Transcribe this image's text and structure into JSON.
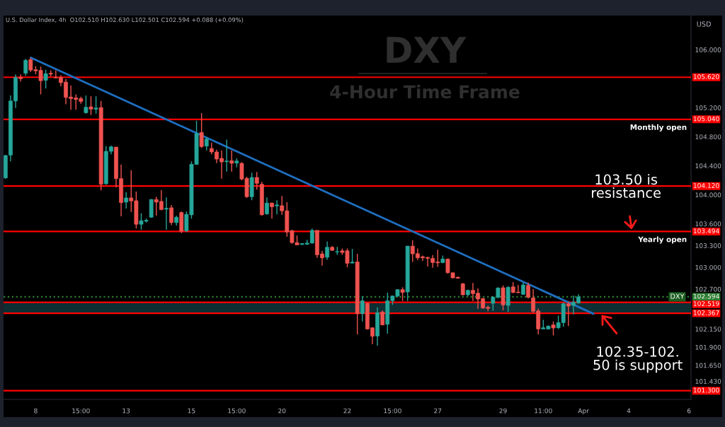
{
  "chart_data": {
    "type": "candlestick",
    "title": "DXY",
    "subtitle": "4-Hour Time Frame",
    "ylabel": "USD",
    "categories": [
      null,
      null,
      null,
      null,
      null,
      null,
      "8",
      null,
      null,
      null,
      null,
      null,
      null,
      null,
      null,
      "15:00",
      null,
      null,
      null,
      null,
      null,
      null,
      null,
      null,
      "13",
      null,
      null,
      null,
      null,
      null,
      null,
      null,
      null,
      null,
      null,
      null,
      null,
      "15",
      null,
      null,
      null,
      null,
      null,
      null,
      null,
      null,
      "15:00",
      null,
      null,
      null,
      null,
      null,
      null,
      null,
      null,
      "20",
      null,
      null,
      null,
      null,
      null,
      null,
      null,
      null,
      null,
      null,
      null,
      null,
      "22",
      null,
      null,
      null,
      null,
      null,
      null,
      null,
      null,
      "15:00",
      null,
      null,
      null,
      null,
      null,
      null,
      null,
      null,
      "27",
      null,
      null,
      null,
      null,
      null,
      null,
      null,
      null,
      null,
      null,
      null,
      null,
      "29",
      null,
      null,
      null,
      null,
      null,
      null,
      null,
      "11:00",
      null,
      null,
      null,
      null,
      null,
      null,
      null,
      "Apr",
      null,
      null,
      null,
      null,
      null,
      null,
      null,
      null,
      "4",
      null,
      null,
      null,
      null,
      null,
      null,
      null,
      null,
      null,
      null,
      null,
      "6"
    ],
    "ohlc": [
      [
        104.233,
        104.55,
        104.22,
        104.541
      ],
      [
        104.547,
        105.368,
        104.46,
        105.293
      ],
      [
        105.293,
        105.66,
        105.196,
        105.617
      ],
      [
        105.62,
        105.66,
        105.56,
        105.6
      ],
      [
        105.676,
        105.87,
        105.643,
        105.854
      ],
      [
        105.864,
        105.887,
        105.692,
        105.718
      ],
      [
        105.724,
        105.773,
        105.66,
        105.708
      ],
      [
        105.715,
        105.767,
        105.384,
        105.572
      ],
      [
        105.578,
        105.724,
        105.465,
        105.669
      ],
      [
        105.676,
        105.715,
        105.627,
        105.663
      ],
      [
        105.621,
        105.715,
        105.604,
        105.611
      ],
      [
        105.617,
        105.65,
        105.497,
        105.546
      ],
      [
        105.553,
        105.595,
        105.248,
        105.342
      ],
      [
        105.348,
        105.507,
        105.173,
        105.326
      ],
      [
        105.335,
        105.384,
        105.173,
        105.313
      ],
      [
        105.326,
        105.352,
        105.254,
        105.287
      ],
      [
        105.131,
        105.368,
        105.118,
        105.206
      ],
      [
        105.212,
        105.358,
        105.099,
        105.18
      ],
      [
        105.18,
        105.358,
        105.118,
        105.196
      ],
      [
        105.202,
        105.293,
        104.061,
        104.145
      ],
      [
        104.152,
        104.671,
        104.136,
        104.599
      ],
      [
        104.599,
        104.677,
        104.557,
        104.661
      ],
      [
        104.658,
        104.658,
        104.103,
        104.223
      ],
      [
        104.223,
        104.418,
        103.704,
        103.892
      ],
      [
        103.899,
        104.038,
        103.811,
        103.957
      ],
      [
        103.957,
        104.34,
        103.763,
        103.915
      ],
      [
        103.918,
        104.045,
        103.536,
        103.594
      ],
      [
        103.594,
        103.746,
        103.519,
        103.643
      ],
      [
        103.636,
        103.672,
        103.617,
        103.649
      ],
      [
        103.691,
        103.941,
        103.682,
        103.935
      ],
      [
        103.935,
        103.973,
        103.714,
        103.899
      ],
      [
        103.909,
        104.064,
        103.789,
        103.795
      ],
      [
        103.802,
        103.964,
        103.519,
        103.815
      ],
      [
        103.821,
        103.86,
        103.584,
        103.617
      ],
      [
        103.617,
        103.714,
        103.575,
        103.691
      ],
      [
        103.756,
        103.769,
        103.471,
        103.497
      ],
      [
        103.503,
        103.769,
        103.487,
        103.73
      ],
      [
        103.724,
        104.46,
        103.672,
        104.421
      ],
      [
        104.418,
        105.021,
        104.418,
        104.842
      ],
      [
        104.859,
        105.125,
        104.645,
        104.664
      ],
      [
        104.671,
        104.794,
        104.612,
        104.768
      ],
      [
        104.638,
        104.719,
        104.557,
        104.59
      ],
      [
        104.59,
        104.622,
        104.437,
        104.492
      ],
      [
        104.502,
        104.612,
        104.223,
        104.453
      ],
      [
        104.456,
        104.761,
        104.32,
        104.466
      ],
      [
        104.47,
        104.612,
        104.32,
        104.434
      ],
      [
        104.437,
        104.502,
        104.379,
        104.466
      ],
      [
        104.434,
        104.45,
        104.2,
        104.217
      ],
      [
        104.226,
        104.249,
        103.957,
        103.973
      ],
      [
        103.973,
        104.304,
        103.925,
        104.239
      ],
      [
        104.239,
        104.314,
        104.071,
        104.158
      ],
      [
        104.145,
        104.178,
        103.714,
        103.724
      ],
      [
        103.737,
        103.964,
        103.724,
        103.886
      ],
      [
        103.886,
        103.892,
        103.672,
        103.834
      ],
      [
        103.847,
        103.925,
        103.73,
        103.86
      ],
      [
        103.85,
        103.983,
        103.724,
        103.779
      ],
      [
        103.779,
        103.899,
        103.422,
        103.487
      ],
      [
        103.504,
        103.519,
        103.325,
        103.341
      ],
      [
        103.341,
        103.439,
        103.309,
        103.309
      ],
      [
        103.315,
        103.335,
        103.309,
        103.328
      ],
      [
        103.319,
        103.38,
        103.309,
        103.335
      ],
      [
        103.335,
        103.536,
        103.325,
        103.51
      ],
      [
        103.51,
        103.51,
        103.131,
        103.173
      ],
      [
        103.186,
        103.228,
        103.024,
        103.131
      ],
      [
        103.14,
        103.358,
        103.105,
        103.277
      ],
      [
        103.277,
        103.293,
        103.228,
        103.234
      ],
      [
        103.212,
        103.283,
        103.173,
        103.218
      ],
      [
        103.228,
        103.26,
        103.173,
        103.205
      ],
      [
        103.228,
        103.26,
        103.001,
        103.056
      ],
      [
        103.059,
        103.254,
        103.056,
        103.072
      ],
      [
        103.075,
        103.186,
        102.077,
        102.362
      ],
      [
        102.362,
        102.602,
        102.255,
        102.54
      ],
      [
        102.505,
        102.517,
        102.142,
        102.151
      ],
      [
        102.168,
        102.174,
        101.941,
        102.051
      ],
      [
        102.054,
        102.45,
        101.921,
        102.375
      ],
      [
        102.385,
        102.408,
        102.2,
        102.207
      ],
      [
        102.216,
        102.651,
        102.087,
        102.54
      ],
      [
        102.54,
        102.612,
        102.482,
        102.605
      ],
      [
        102.605,
        102.699,
        102.589,
        102.693
      ],
      [
        102.693,
        102.725,
        102.537,
        102.654
      ],
      [
        102.661,
        103.293,
        102.537,
        103.293
      ],
      [
        103.293,
        103.374,
        103.075,
        103.186
      ],
      [
        103.189,
        103.26,
        103.098,
        103.131
      ],
      [
        103.147,
        103.163,
        103.088,
        103.131
      ],
      [
        103.137,
        103.147,
        103.011,
        103.124
      ],
      [
        103.124,
        103.17,
        102.995,
        103.066
      ],
      [
        103.075,
        103.244,
        103.007,
        103.062
      ],
      [
        103.066,
        103.163,
        103.056,
        103.115
      ],
      [
        103.115,
        103.121,
        102.913,
        102.926
      ],
      [
        102.926,
        102.926,
        102.849,
        102.855
      ],
      [
        102.865,
        102.871,
        102.845,
        102.849
      ],
      [
        102.774,
        102.784,
        102.612,
        102.622
      ],
      [
        102.622,
        102.693,
        102.602,
        102.683
      ],
      [
        102.683,
        102.784,
        102.537,
        102.638
      ],
      [
        102.644,
        102.709,
        102.427,
        102.563
      ],
      [
        102.57,
        102.58,
        102.427,
        102.44
      ],
      [
        102.45,
        102.472,
        102.395,
        102.434
      ],
      [
        102.505,
        102.602,
        102.401,
        102.589
      ],
      [
        102.589,
        102.725,
        102.57,
        102.716
      ],
      [
        102.719,
        102.751,
        102.408,
        102.482
      ],
      [
        102.476,
        102.742,
        102.385,
        102.725
      ],
      [
        102.732,
        102.797,
        102.644,
        102.654
      ],
      [
        102.66,
        102.758,
        102.644,
        102.651
      ],
      [
        102.628,
        102.79,
        102.622,
        102.758
      ],
      [
        102.751,
        102.79,
        102.57,
        102.589
      ],
      [
        102.58,
        102.699,
        102.369,
        102.395
      ],
      [
        102.401,
        102.434,
        102.077,
        102.151
      ],
      [
        102.151,
        102.278,
        102.151,
        102.168
      ],
      [
        102.151,
        102.2,
        102.142,
        102.19
      ],
      [
        102.207,
        102.255,
        102.061,
        102.164
      ],
      [
        102.168,
        102.336,
        102.151,
        102.239
      ],
      [
        102.239,
        102.515,
        102.184,
        102.498
      ],
      [
        102.498,
        102.531,
        102.19,
        102.466
      ],
      [
        102.476,
        102.612,
        102.352,
        102.521
      ],
      [
        102.51,
        102.63,
        102.501,
        102.594
      ],
      null,
      null,
      null,
      null,
      null,
      null,
      null,
      null,
      null,
      null,
      null,
      null,
      null,
      null,
      null,
      null,
      null,
      null,
      null,
      null,
      null,
      null
    ],
    "colors": [
      "#26a69a",
      "#26a69a",
      "#26a69a",
      "#ef5350",
      "#26a69a",
      "#ef5350",
      "#ef5350",
      "#ef5350",
      "#26a69a",
      "#ef5350",
      "#ef5350",
      "#ef5350",
      "#ef5350",
      "#ef5350",
      "#ef5350",
      "#ef5350",
      "#26a69a",
      "#ef5350",
      "#26a69a",
      "#ef5350",
      "#26a69a",
      "#26a69a",
      "#ef5350",
      "#ef5350",
      "#26a69a",
      "#ef5350",
      "#ef5350",
      "#26a69a",
      "#26a69a",
      "#26a69a",
      "#ef5350",
      "#ef5350",
      "#26a69a",
      "#ef5350",
      "#26a69a",
      "#ef5350",
      "#26a69a",
      "#26a69a",
      "#26a69a",
      "#ef5350",
      "#26a69a",
      "#ef5350",
      "#ef5350",
      "#ef5350",
      "#26a69a",
      "#ef5350",
      "#26a69a",
      "#ef5350",
      "#ef5350",
      "#26a69a",
      "#ef5350",
      "#ef5350",
      "#26a69a",
      "#ef5350",
      "#26a69a",
      "#ef5350",
      "#ef5350",
      "#ef5350",
      "#ef5350",
      "#26a69a",
      "#26a69a",
      "#26a69a",
      "#ef5350",
      "#ef5350",
      "#26a69a",
      "#ef5350",
      "#26a69a",
      "#ef5350",
      "#ef5350",
      "#26a69a",
      "#ef5350",
      "#26a69a",
      "#ef5350",
      "#ef5350",
      "#26a69a",
      "#ef5350",
      "#26a69a",
      "#26a69a",
      "#26a69a",
      "#ef5350",
      "#26a69a",
      "#ef5350",
      "#ef5350",
      "#ef5350",
      "#ef5350",
      "#ef5350",
      "#ef5350",
      "#26a69a",
      "#ef5350",
      "#ef5350",
      "#ef5350",
      "#ef5350",
      "#26a69a",
      "#ef5350",
      "#ef5350",
      "#ef5350",
      "#ef5350",
      "#26a69a",
      "#26a69a",
      "#ef5350",
      "#26a69a",
      "#ef5350",
      "#ef5350",
      "#26a69a",
      "#ef5350",
      "#ef5350",
      "#ef5350",
      "#26a69a",
      "#26a69a",
      "#ef5350",
      "#26a69a",
      "#26a69a",
      "#ef5350",
      "#26a69a",
      "#26a69a",
      null,
      null,
      null,
      null,
      null,
      null,
      null,
      null,
      null,
      null,
      null,
      null,
      null,
      null,
      null,
      null,
      null,
      null,
      null,
      null,
      null,
      null
    ],
    "series": [
      {
        "type": "line",
        "values": [
          null,
          null,
          null,
          null,
          null,
          105.89,
          null,
          null,
          null,
          null,
          null,
          null,
          null,
          null,
          null,
          null,
          null,
          null,
          null,
          null,
          null,
          null,
          null,
          null,
          null,
          null,
          null,
          null,
          null,
          null,
          null,
          null,
          null,
          null,
          null,
          null,
          null,
          null,
          null,
          null,
          null,
          null,
          null,
          null,
          null,
          null,
          null,
          null,
          null,
          null,
          null,
          null,
          null,
          null,
          null,
          null,
          null,
          null,
          null,
          null,
          null,
          null,
          null,
          null,
          null,
          null,
          null,
          null,
          null,
          null,
          null,
          null,
          null,
          null,
          null,
          null,
          null,
          null,
          null,
          null,
          null,
          null,
          null,
          null,
          null,
          null,
          null,
          null,
          null,
          null,
          null,
          null,
          null,
          null,
          null,
          null,
          null,
          null,
          null,
          null,
          null,
          null,
          null,
          null,
          null,
          null,
          null,
          null,
          null,
          null,
          null,
          null,
          null,
          null,
          null,
          null,
          null,
          102.36,
          null,
          null,
          null,
          null,
          null,
          null,
          null,
          null,
          null,
          null,
          null,
          null,
          null,
          null,
          null,
          null,
          null,
          null,
          null
        ],
        "color": "#1e6fc0"
      }
    ],
    "ylim": [
      101.18,
      106.47
    ],
    "yticks": [
      {
        "value": 106,
        "label": "106.000"
      },
      {
        "value": 105.2,
        "label": "105.200"
      },
      {
        "value": 104.8,
        "label": "104.800"
      },
      {
        "value": 104.4,
        "label": "104.400"
      },
      {
        "value": 104,
        "label": "104.000"
      },
      {
        "value": 103.6,
        "label": "103.600"
      },
      {
        "value": 103.3,
        "label": "103.300"
      },
      {
        "value": 103,
        "label": "103.000"
      },
      {
        "value": 102.7,
        "label": "102.700"
      },
      {
        "value": 102.15,
        "label": "102.150"
      },
      {
        "value": 101.9,
        "label": "101.900"
      },
      {
        "value": 101.65,
        "label": "101.650"
      },
      {
        "value": 101.43,
        "label": "101.430"
      }
    ],
    "ref_lines": [
      {
        "axis": "y",
        "value": 105.62,
        "label": "105.620",
        "color": "#ff0000",
        "line_style": "solid"
      },
      {
        "axis": "y",
        "value": 105.04,
        "label": "105.040",
        "color": "#ff0000",
        "line_style": "solid"
      },
      {
        "axis": "y",
        "value": 104.12,
        "label": "104.120",
        "color": "#ff0000",
        "line_style": "solid"
      },
      {
        "axis": "y",
        "value": 103.494,
        "label": "103.494",
        "color": "#ff0000",
        "line_style": "solid"
      },
      {
        "axis": "y",
        "value": 102.594,
        "label": "102.594",
        "color": "#2e7d32",
        "line_style": "dotted"
      },
      {
        "axis": "y",
        "value": 102.519,
        "label": "102.519",
        "color": "#ff0000",
        "line_style": "solid"
      },
      {
        "axis": "y",
        "value": 102.367,
        "label": "102.367",
        "color": "#ff0000",
        "line_style": "solid"
      },
      {
        "axis": "y",
        "value": 101.3,
        "label": "101.300",
        "color": "#ff0000",
        "line_style": "solid"
      }
    ],
    "bands": [
      {
        "axis": "y",
        "from": 102.367,
        "to": 102.519,
        "label": null,
        "color": "#0d2e33"
      }
    ],
    "annotations": [
      "U.S. Dollar Index, 4h  O102.510 H102.630 L102.501 C102.594 +0.088 (+0.09%)",
      {
        "text": "Monthly open",
        "y": 105.04
      },
      {
        "text": "Yearly open",
        "y": 103.494
      },
      {
        "text": "103.50 is\nresistance",
        "y": 103.494
      },
      {
        "text": "102.35-102.\n50 is support",
        "y": 102.367
      },
      {
        "text": "DXY",
        "y": 102.594
      }
    ],
    "grid": false
  }
}
